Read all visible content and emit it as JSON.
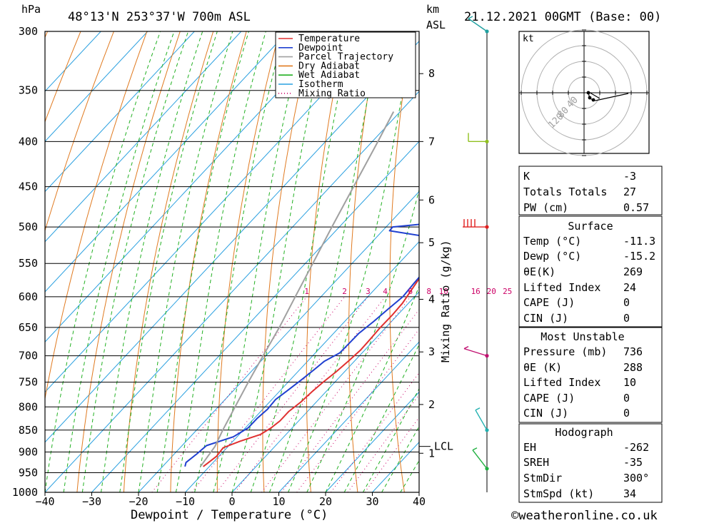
{
  "header": {
    "location": "48°13'N  253°37'W  700m  ASL",
    "datetime": "21.12.2021  00GMT  (Base: 00)",
    "hpa_unit": "hPa",
    "km_unit": "km",
    "asl_unit": "ASL",
    "kt_label": "kt"
  },
  "footer": {
    "credit": "©weatheronline.co.uk"
  },
  "colors": {
    "temperature": "#e03030",
    "dewpoint": "#2040d0",
    "parcel": "#a0a0a0",
    "dry_adiabat": "#e07a20",
    "wet_adiabat": "#22b022",
    "isotherm": "#2aa0e0",
    "mixing_ratio": "#cc0066"
  },
  "chart_data": {
    "type": "line",
    "title": "",
    "xlabel": "Dewpoint / Temperature (°C)",
    "ylabel_right": "Mixing Ratio (g/kg)",
    "x_range": [
      -40,
      40
    ],
    "x_ticks": [
      -40,
      -30,
      -20,
      -10,
      0,
      10,
      20,
      30,
      40
    ],
    "x_tick_labels": [
      "−40",
      "−30",
      "−20",
      "−10",
      "0",
      "10",
      "20",
      "30",
      "40"
    ],
    "pressure_range": [
      1000,
      300
    ],
    "pressure_ticks": [
      300,
      350,
      400,
      450,
      500,
      550,
      600,
      650,
      700,
      750,
      800,
      850,
      900,
      950,
      1000
    ],
    "height_ticks_km": [
      {
        "p": 335,
        "label": "8"
      },
      {
        "p": 400,
        "label": "7"
      },
      {
        "p": 466,
        "label": "6"
      },
      {
        "p": 521,
        "label": "5"
      },
      {
        "p": 604,
        "label": "4"
      },
      {
        "p": 693,
        "label": "3"
      },
      {
        "p": 795,
        "label": "2"
      },
      {
        "p": 903,
        "label": "1"
      }
    ],
    "lcl": {
      "p": 887,
      "label": "LCL"
    },
    "mixing_ratio_labels": [
      "1",
      "2",
      "3",
      "4",
      "6",
      "8",
      "10",
      "16",
      "20",
      "25"
    ],
    "mixing_ratio_values": [
      1,
      2,
      3,
      4,
      6,
      8,
      10,
      16,
      20,
      25
    ],
    "legend": [
      "Temperature",
      "Dewpoint",
      "Parcel Trajectory",
      "Dry Adiabat",
      "Wet Adiabat",
      "Isotherm",
      "Mixing Ratio"
    ],
    "legend_placement": "top-right",
    "series": [
      {
        "name": "Temperature",
        "points": [
          [
            935,
            -11.3
          ],
          [
            910,
            -10.5
          ],
          [
            890,
            -10.8
          ],
          [
            875,
            -8.5
          ],
          [
            860,
            -5.5
          ],
          [
            845,
            -4.5
          ],
          [
            830,
            -4.0
          ],
          [
            810,
            -4.0
          ],
          [
            790,
            -3.3
          ],
          [
            770,
            -3.0
          ],
          [
            750,
            -2.5
          ],
          [
            730,
            -1.8
          ],
          [
            710,
            -1.3
          ],
          [
            690,
            -0.9
          ],
          [
            670,
            -1.0
          ],
          [
            650,
            -1.2
          ],
          [
            630,
            -1.1
          ],
          [
            610,
            -1.3
          ],
          [
            590,
            -2.0
          ],
          [
            570,
            -2.7
          ],
          [
            550,
            -3.6
          ],
          [
            530,
            -4.4
          ],
          [
            510,
            -5.0
          ],
          [
            500,
            -5.6
          ],
          [
            485,
            -6.0
          ],
          [
            470,
            -6.4
          ],
          [
            460,
            -6.9
          ],
          [
            450,
            -7.4
          ],
          [
            430,
            -8.2
          ],
          [
            410,
            -9.0
          ],
          [
            390,
            -10.3
          ],
          [
            370,
            -11.5
          ],
          [
            350,
            -12.6
          ],
          [
            330,
            -13.9
          ],
          [
            310,
            -14.6
          ],
          [
            300,
            -14.7
          ]
        ]
      },
      {
        "name": "Dewpoint",
        "points": [
          [
            935,
            -15.2
          ],
          [
            925,
            -15.8
          ],
          [
            905,
            -15.2
          ],
          [
            885,
            -14.8
          ],
          [
            865,
            -10.8
          ],
          [
            845,
            -9.4
          ],
          [
            825,
            -9.4
          ],
          [
            805,
            -9.0
          ],
          [
            785,
            -9.2
          ],
          [
            765,
            -8.4
          ],
          [
            745,
            -7.6
          ],
          [
            725,
            -6.9
          ],
          [
            710,
            -6.4
          ],
          [
            695,
            -4.8
          ],
          [
            680,
            -4.7
          ],
          [
            660,
            -4.6
          ],
          [
            640,
            -3.8
          ],
          [
            620,
            -3.2
          ],
          [
            600,
            -2.5
          ],
          [
            580,
            -2.8
          ],
          [
            560,
            -3.0
          ],
          [
            540,
            -3.5
          ],
          [
            525,
            -4.1
          ],
          [
            515,
            -7.0
          ],
          [
            505,
            -18.5
          ],
          [
            500,
            -18.6
          ],
          [
            495,
            -11.0
          ],
          [
            485,
            -10.1
          ],
          [
            470,
            -9.9
          ],
          [
            455,
            -8.5
          ],
          [
            440,
            -9.5
          ],
          [
            420,
            -9.8
          ],
          [
            400,
            -9.8
          ],
          [
            380,
            -11.8
          ],
          [
            360,
            -13.9
          ],
          [
            340,
            -14.9
          ],
          [
            320,
            -16.2
          ],
          [
            300,
            -17.6
          ]
        ]
      },
      {
        "name": "Parcel Trajectory",
        "points": [
          [
            935,
            -11.9
          ],
          [
            887,
            -12.8
          ],
          [
            850,
            -14.4
          ],
          [
            800,
            -16.4
          ],
          [
            750,
            -18.5
          ],
          [
            700,
            -20.6
          ],
          [
            650,
            -22.8
          ],
          [
            600,
            -25.5
          ],
          [
            550,
            -28.4
          ],
          [
            500,
            -31.6
          ],
          [
            450,
            -35.0
          ],
          [
            400,
            -38.8
          ],
          [
            370,
            -41.4
          ]
        ]
      }
    ]
  },
  "hodograph": {
    "unit_label": "kt",
    "ring_labels": [
      "40",
      "80",
      "120"
    ]
  },
  "indices": {
    "k_label": "K",
    "k_value": "-3",
    "tt_label": "Totals Totals",
    "tt_value": "27",
    "pw_label": "PW (cm)",
    "pw_value": "0.57"
  },
  "surface": {
    "title": "Surface",
    "temp_label": "Temp (°C)",
    "temp_value": "-11.3",
    "dewp_label": "Dewp (°C)",
    "dewp_value": "-15.2",
    "theta_e_label": "θE(K)",
    "theta_e_value": "269",
    "li_label": "Lifted Index",
    "li_value": "24",
    "cape_label": "CAPE (J)",
    "cape_value": "0",
    "cin_label": "CIN (J)",
    "cin_value": "0"
  },
  "most_unstable": {
    "title": "Most Unstable",
    "pressure_label": "Pressure (mb)",
    "pressure_value": "736",
    "theta_e_label": "θE (K)",
    "theta_e_value": "288",
    "li_label": "Lifted Index",
    "li_value": "10",
    "cape_label": "CAPE (J)",
    "cape_value": "0",
    "cin_label": "CIN (J)",
    "cin_value": "0"
  },
  "hodograph_table": {
    "title": "Hodograph",
    "eh_label": "EH",
    "eh_value": "-262",
    "sreh_label": "SREH",
    "sreh_value": "-35",
    "stmdir_label": "StmDir",
    "stmdir_value": "300°",
    "stmspd_label": "StmSpd (kt)",
    "stmspd_value": "34"
  }
}
